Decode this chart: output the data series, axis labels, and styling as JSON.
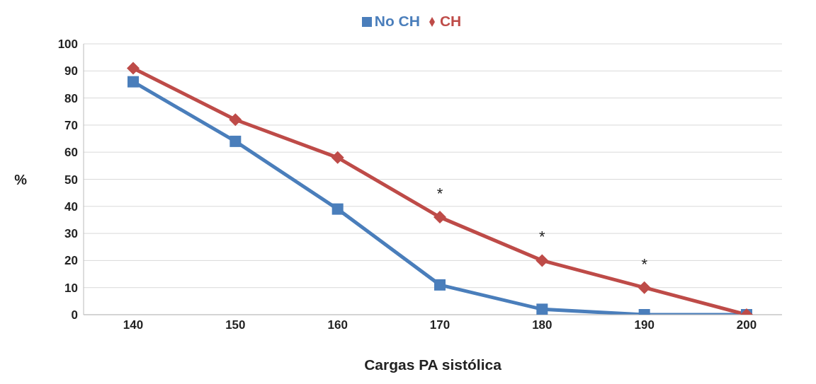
{
  "chart_data": {
    "type": "line",
    "xlabel": "Cargas PA sistólica",
    "ylabel": "%",
    "categories": [
      "140",
      "150",
      "160",
      "170",
      "180",
      "190",
      "200"
    ],
    "series": [
      {
        "name": "No CH",
        "color": "#4a7ebb",
        "marker": "square",
        "values": [
          86,
          64,
          39,
          11,
          2,
          0,
          0
        ]
      },
      {
        "name": "CH",
        "color": "#be4b48",
        "marker": "diamond",
        "values": [
          91,
          72,
          58,
          36,
          20,
          10,
          0
        ]
      }
    ],
    "ylim": [
      0,
      100
    ],
    "yticks": [
      0,
      10,
      20,
      30,
      40,
      50,
      60,
      70,
      80,
      90,
      100
    ],
    "grid": "y",
    "legend": "top",
    "annotations": [
      {
        "text": "*",
        "x": "170",
        "y": 36
      },
      {
        "text": "*",
        "x": "180",
        "y": 20
      },
      {
        "text": "*",
        "x": "190",
        "y": 10
      }
    ]
  }
}
